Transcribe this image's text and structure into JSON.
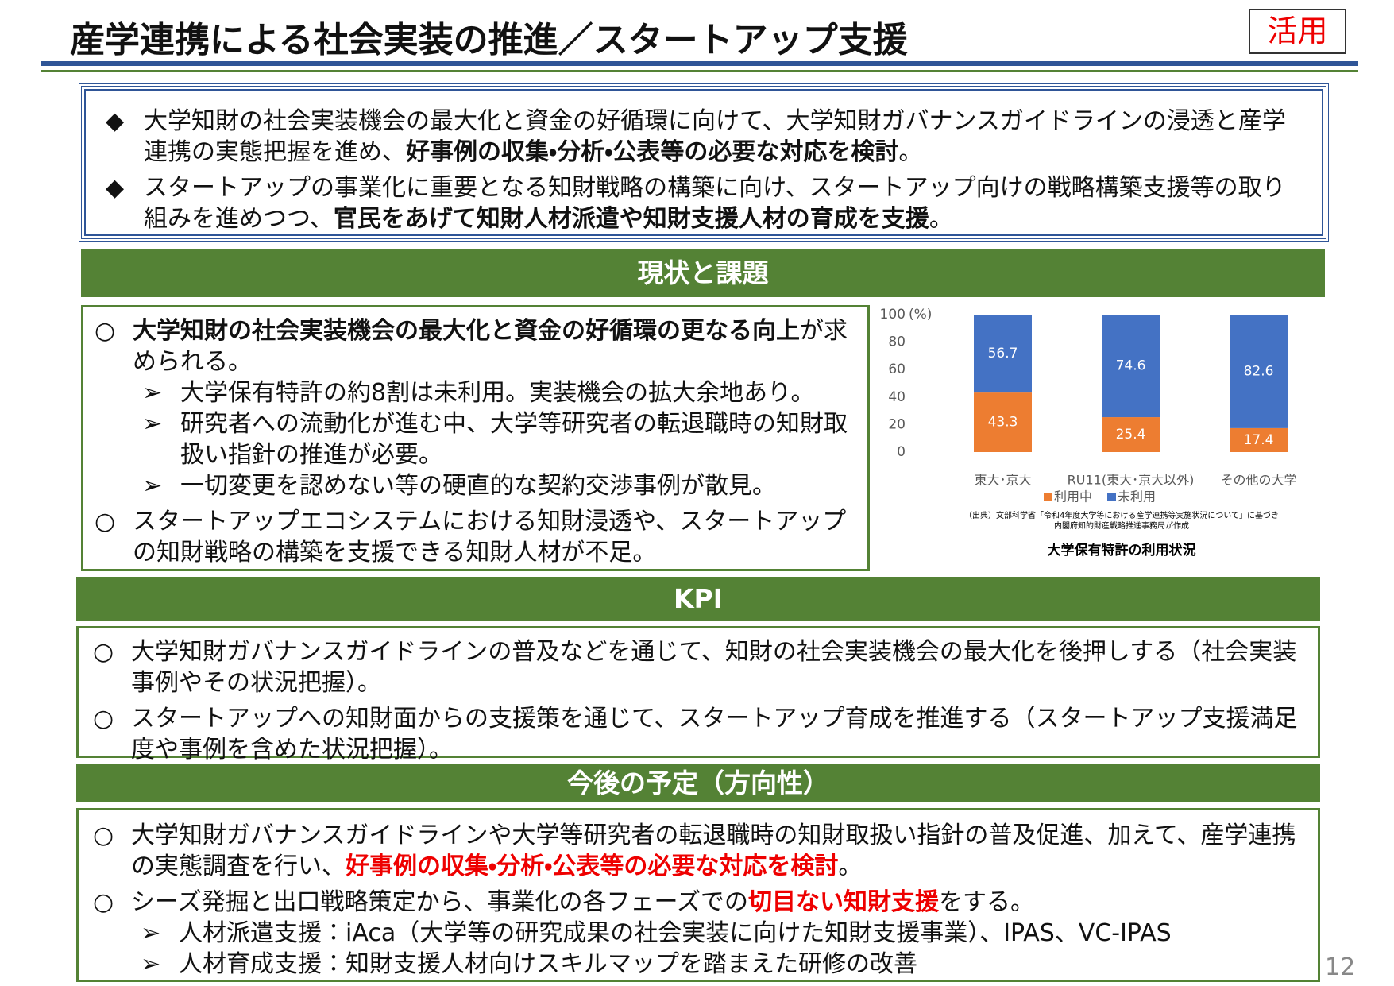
{
  "header": {
    "title": "産学連携による社会実装の推進／スタートアップ支援",
    "tag": "活用"
  },
  "summary": {
    "items": [
      {
        "marker": "◆",
        "segments": [
          {
            "text": "大学知財の社会実装機会の最大化と資金の好循環に向けて、大学知財ガバナンスガイドラインの浸透と産学連携の実態把握を進め、"
          },
          {
            "text": "好事例の収集・分析・公表等の必要な対応を検討",
            "style": "bold"
          },
          {
            "text": "。"
          }
        ]
      },
      {
        "marker": "◆",
        "segments": [
          {
            "text": "スタートアップの事業化に重要となる知財戦略の構築に向け、スタートアップ向けの戦略構築支援等の取り組みを進めつつ、"
          },
          {
            "text": "官民をあげて知財人材派遣や知財支援人材の育成を支援",
            "style": "bold"
          },
          {
            "text": "。"
          }
        ]
      }
    ]
  },
  "status": {
    "heading": "現状と課題",
    "items": [
      {
        "marker": "○",
        "segments": [
          {
            "text": "大学知財の社会実装機会の最大化と資金の好循環の更なる向上",
            "style": "bold"
          },
          {
            "text": "が求められる。"
          }
        ],
        "subitems": [
          {
            "marker": "➢",
            "segments": [
              {
                "text": "大学保有特許の約8割は未利用。実装機会の拡大余地あり。"
              }
            ]
          },
          {
            "marker": "➢",
            "segments": [
              {
                "text": "研究者への流動化が進む中、大学等研究者の転退職時の知財取扱い指針の推進が必要。"
              }
            ]
          },
          {
            "marker": "➢",
            "segments": [
              {
                "text": "一切変更を認めない等の硬直的な契約交渉事例が散見。"
              }
            ]
          }
        ]
      },
      {
        "marker": "○",
        "segments": [
          {
            "text": "スタートアップエコシステムにおける知財浸透や、スタートアップの知財戦略の構築を支援できる知財人材が不足。"
          }
        ]
      }
    ]
  },
  "kpi": {
    "heading": "KPI",
    "items": [
      {
        "marker": "○",
        "segments": [
          {
            "text": "大学知財ガバナンスガイドラインの普及などを通じて、知財の社会実装機会の最大化を後押しする（社会実装事例やその状況把握）。"
          }
        ]
      },
      {
        "marker": "○",
        "segments": [
          {
            "text": "スタートアップへの知財面からの支援策を通じて、スタートアップ育成を推進する（スタートアップ支援満足度や事例を含めた状況把握）。"
          }
        ]
      }
    ]
  },
  "plan": {
    "heading": "今後の予定（方向性）",
    "items": [
      {
        "marker": "○",
        "segments": [
          {
            "text": "大学知財ガバナンスガイドラインや大学等研究者の転退職時の知財取扱い指針の普及促進、加えて、産学連携の実態調査を行い、"
          },
          {
            "text": "好事例の収集・分析・公表等の必要な対応を検討",
            "style": "red"
          },
          {
            "text": "。"
          }
        ]
      },
      {
        "marker": "○",
        "segments": [
          {
            "text": "シーズ発掘と出口戦略策定から、事業化の各フェーズでの"
          },
          {
            "text": "切目ない知財支援",
            "style": "red"
          },
          {
            "text": "をする。"
          }
        ],
        "subitems": [
          {
            "marker": "➢",
            "segments": [
              {
                "text": "人材派遣支援：iAca（大学等の研究成果の社会実装に向けた知財支援事業）、IPAS、VC-IPAS"
              }
            ]
          },
          {
            "marker": "➢",
            "segments": [
              {
                "text": "人材育成支援：知財支援人材向けスキルマップを踏まえた研修の改善"
              }
            ]
          }
        ]
      }
    ]
  },
  "page_number": "12",
  "chart_data": {
    "type": "stacked_bar",
    "title": "大学保有特許の利用状況",
    "y_unit": "(%)",
    "categories": [
      "東大･京大",
      "RU11(東大･京大以外)",
      "その他の大学"
    ],
    "series": [
      {
        "name": "利用中",
        "color": "#ed7d31",
        "values": [
          43.3,
          25.4,
          17.4
        ]
      },
      {
        "name": "未利用",
        "color": "#4472c4",
        "values": [
          56.7,
          74.6,
          82.6
        ]
      }
    ],
    "ylim": [
      0,
      100
    ],
    "yticks": [
      0,
      20,
      40,
      60,
      80,
      100
    ],
    "legend": "bottom",
    "source": [
      "（出典）文部科学省「令和4年度大学等における産学連携等実施状況について」に基づき",
      "内閣府知的財産戦略推進事務局が作成"
    ]
  }
}
